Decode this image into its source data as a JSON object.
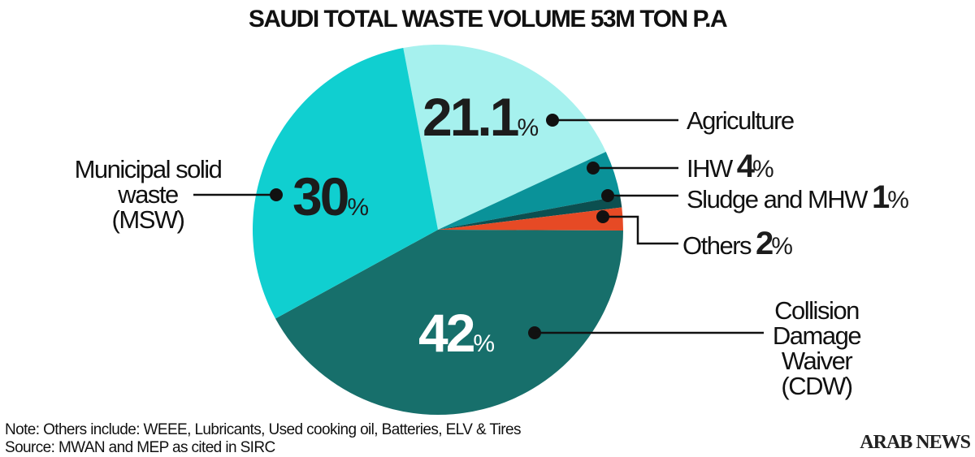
{
  "chart_data": {
    "type": "pie",
    "title": "SAUDI TOTAL WASTE VOLUME 53M TON P.A",
    "slices": [
      {
        "name": "Agriculture",
        "value": 21.1,
        "display": "21.1",
        "color": "#a6f1ee"
      },
      {
        "name": "IHW",
        "value": 4,
        "display": "4",
        "color": "#0a9299"
      },
      {
        "name": "Sludge and MHW",
        "value": 1,
        "display": "1",
        "color": "#0c4f50"
      },
      {
        "name": "Others",
        "value": 2,
        "display": "2",
        "color": "#e64a25"
      },
      {
        "name": "Collision Damage Waiver (CDW)",
        "value": 42,
        "display": "42",
        "color": "#176f6b"
      },
      {
        "name": "Municipal solid waste (MSW)",
        "value": 30,
        "display": "30",
        "color": "#10cfd0"
      }
    ],
    "unit": "%",
    "label_lines": {
      "msw": [
        "Municipal solid",
        "waste",
        "(MSW)"
      ],
      "cdw": [
        "Collision",
        "Damage",
        "Waiver",
        "(CDW)"
      ]
    },
    "note": "Note: Others include: WEEE, Lubricants, Used cooking oil, Batteries,  ELV & Tires",
    "source": "Source: MWAN and MEP as cited in SIRC"
  },
  "brand": "ARAB NEWS"
}
